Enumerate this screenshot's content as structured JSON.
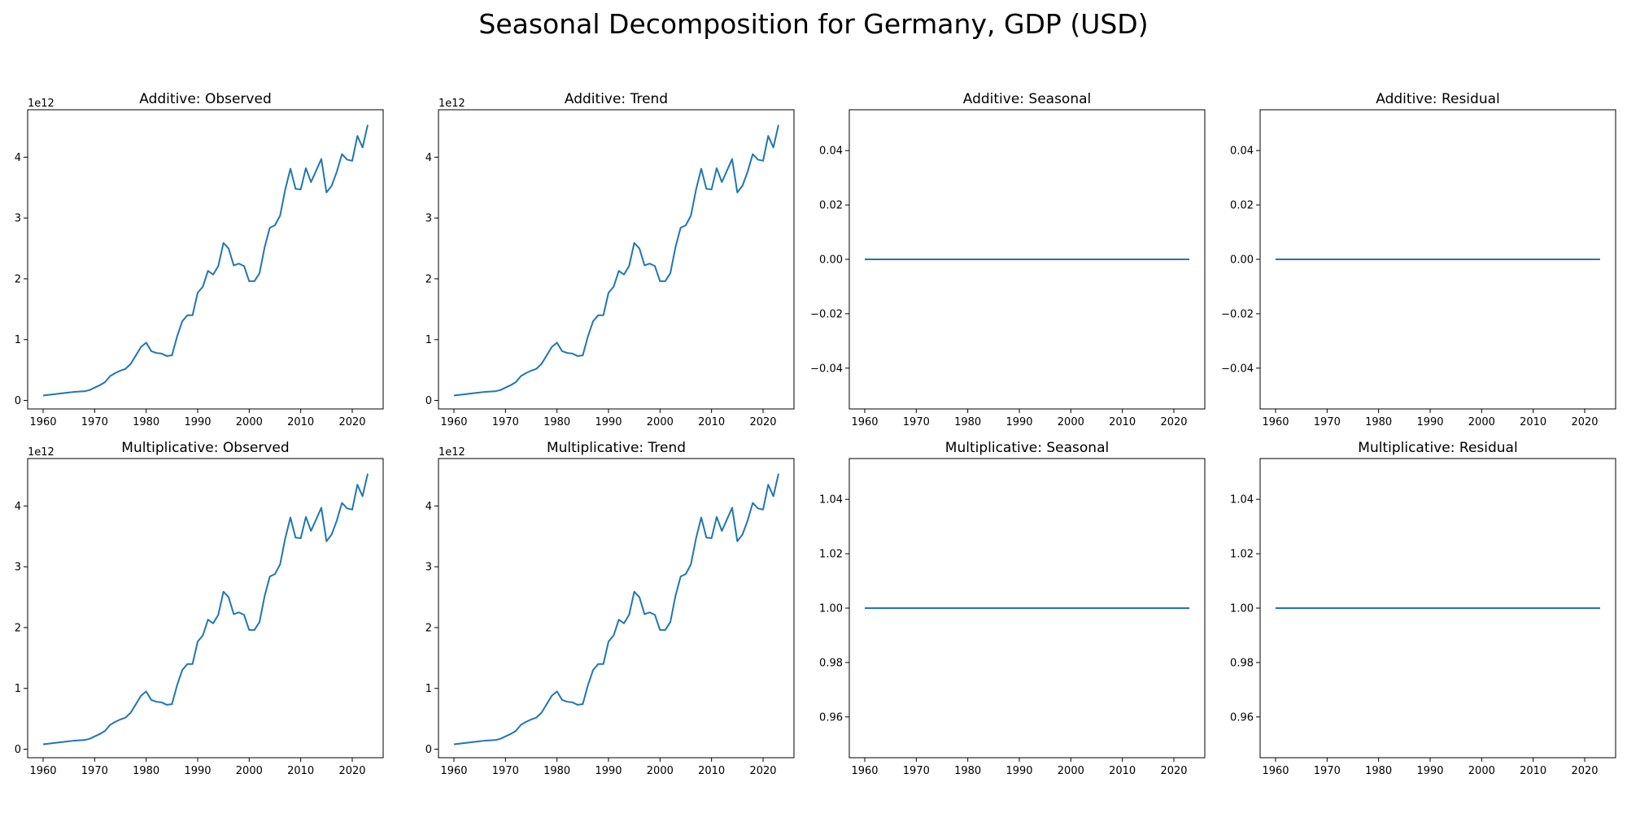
{
  "figure": {
    "title": "Seasonal Decomposition for Germany, GDP (USD)",
    "line_color": "#1f77b4"
  },
  "gdp_series": {
    "x": [
      1960,
      1961,
      1962,
      1963,
      1964,
      1965,
      1966,
      1967,
      1968,
      1969,
      1970,
      1971,
      1972,
      1973,
      1974,
      1975,
      1976,
      1977,
      1978,
      1979,
      1980,
      1981,
      1982,
      1983,
      1984,
      1985,
      1986,
      1987,
      1988,
      1989,
      1990,
      1991,
      1992,
      1993,
      1994,
      1995,
      1996,
      1997,
      1998,
      1999,
      2000,
      2001,
      2002,
      2003,
      2004,
      2005,
      2006,
      2007,
      2008,
      2009,
      2010,
      2011,
      2012,
      2013,
      2014,
      2015,
      2016,
      2017,
      2018,
      2019,
      2020,
      2021,
      2022,
      2023
    ],
    "y": [
      0.08,
      0.09,
      0.1,
      0.11,
      0.12,
      0.13,
      0.14,
      0.145,
      0.15,
      0.17,
      0.21,
      0.25,
      0.3,
      0.4,
      0.45,
      0.49,
      0.52,
      0.6,
      0.74,
      0.88,
      0.95,
      0.81,
      0.78,
      0.77,
      0.73,
      0.74,
      1.05,
      1.3,
      1.4,
      1.4,
      1.77,
      1.87,
      2.13,
      2.07,
      2.21,
      2.59,
      2.5,
      2.22,
      2.25,
      2.21,
      1.96,
      1.96,
      2.09,
      2.52,
      2.84,
      2.88,
      3.04,
      3.47,
      3.81,
      3.48,
      3.47,
      3.82,
      3.59,
      3.78,
      3.97,
      3.42,
      3.53,
      3.76,
      4.05,
      3.96,
      3.94,
      4.35,
      4.16,
      4.53
    ]
  },
  "chart_data": [
    {
      "type": "line",
      "title": "Additive: Observed",
      "x_range": [
        1957,
        2026
      ],
      "ylim": [
        -0.14,
        4.78
      ],
      "y_offset_label": "1e12",
      "xticks": [
        1960,
        1970,
        1980,
        1990,
        2000,
        2010,
        2020
      ],
      "yticks": [
        0,
        1,
        2,
        3,
        4
      ],
      "ytick_labels": [
        "0",
        "1",
        "2",
        "3",
        "4"
      ],
      "series": [
        {
          "ref": "gdp_series",
          "constant": null
        }
      ]
    },
    {
      "type": "line",
      "title": "Additive: Trend",
      "x_range": [
        1957,
        2026
      ],
      "ylim": [
        -0.14,
        4.78
      ],
      "y_offset_label": "1e12",
      "xticks": [
        1960,
        1970,
        1980,
        1990,
        2000,
        2010,
        2020
      ],
      "yticks": [
        0,
        1,
        2,
        3,
        4
      ],
      "ytick_labels": [
        "0",
        "1",
        "2",
        "3",
        "4"
      ],
      "series": [
        {
          "ref": "gdp_series",
          "constant": null
        }
      ]
    },
    {
      "type": "line",
      "title": "Additive: Seasonal",
      "x_range": [
        1957,
        2026
      ],
      "ylim": [
        -0.055,
        0.055
      ],
      "y_offset_label": "",
      "xticks": [
        1960,
        1970,
        1980,
        1990,
        2000,
        2010,
        2020
      ],
      "yticks": [
        -0.04,
        -0.02,
        0,
        0.02,
        0.04
      ],
      "ytick_labels": [
        "−0.04",
        "−0.02",
        "0.00",
        "0.02",
        "0.04"
      ],
      "series": [
        {
          "ref": null,
          "constant": 0
        }
      ]
    },
    {
      "type": "line",
      "title": "Additive: Residual",
      "x_range": [
        1957,
        2026
      ],
      "ylim": [
        -0.055,
        0.055
      ],
      "y_offset_label": "",
      "xticks": [
        1960,
        1970,
        1980,
        1990,
        2000,
        2010,
        2020
      ],
      "yticks": [
        -0.04,
        -0.02,
        0,
        0.02,
        0.04
      ],
      "ytick_labels": [
        "−0.04",
        "−0.02",
        "0.00",
        "0.02",
        "0.04"
      ],
      "series": [
        {
          "ref": null,
          "constant": 0
        }
      ]
    },
    {
      "type": "line",
      "title": "Multiplicative: Observed",
      "x_range": [
        1957,
        2026
      ],
      "ylim": [
        -0.14,
        4.78
      ],
      "y_offset_label": "1e12",
      "xticks": [
        1960,
        1970,
        1980,
        1990,
        2000,
        2010,
        2020
      ],
      "yticks": [
        0,
        1,
        2,
        3,
        4
      ],
      "ytick_labels": [
        "0",
        "1",
        "2",
        "3",
        "4"
      ],
      "series": [
        {
          "ref": "gdp_series",
          "constant": null
        }
      ]
    },
    {
      "type": "line",
      "title": "Multiplicative: Trend",
      "x_range": [
        1957,
        2026
      ],
      "ylim": [
        -0.14,
        4.78
      ],
      "y_offset_label": "1e12",
      "xticks": [
        1960,
        1970,
        1980,
        1990,
        2000,
        2010,
        2020
      ],
      "yticks": [
        0,
        1,
        2,
        3,
        4
      ],
      "ytick_labels": [
        "0",
        "1",
        "2",
        "3",
        "4"
      ],
      "series": [
        {
          "ref": "gdp_series",
          "constant": null
        }
      ]
    },
    {
      "type": "line",
      "title": "Multiplicative: Seasonal",
      "x_range": [
        1957,
        2026
      ],
      "ylim": [
        0.945,
        1.055
      ],
      "y_offset_label": "",
      "xticks": [
        1960,
        1970,
        1980,
        1990,
        2000,
        2010,
        2020
      ],
      "yticks": [
        0.96,
        0.98,
        1.0,
        1.02,
        1.04
      ],
      "ytick_labels": [
        "0.96",
        "0.98",
        "1.00",
        "1.02",
        "1.04"
      ],
      "series": [
        {
          "ref": null,
          "constant": 1
        }
      ]
    },
    {
      "type": "line",
      "title": "Multiplicative: Residual",
      "x_range": [
        1957,
        2026
      ],
      "ylim": [
        0.945,
        1.055
      ],
      "y_offset_label": "",
      "xticks": [
        1960,
        1970,
        1980,
        1990,
        2000,
        2010,
        2020
      ],
      "yticks": [
        0.96,
        0.98,
        1.0,
        1.02,
        1.04
      ],
      "ytick_labels": [
        "0.96",
        "0.98",
        "1.00",
        "1.02",
        "1.04"
      ],
      "series": [
        {
          "ref": null,
          "constant": 1
        }
      ]
    }
  ]
}
